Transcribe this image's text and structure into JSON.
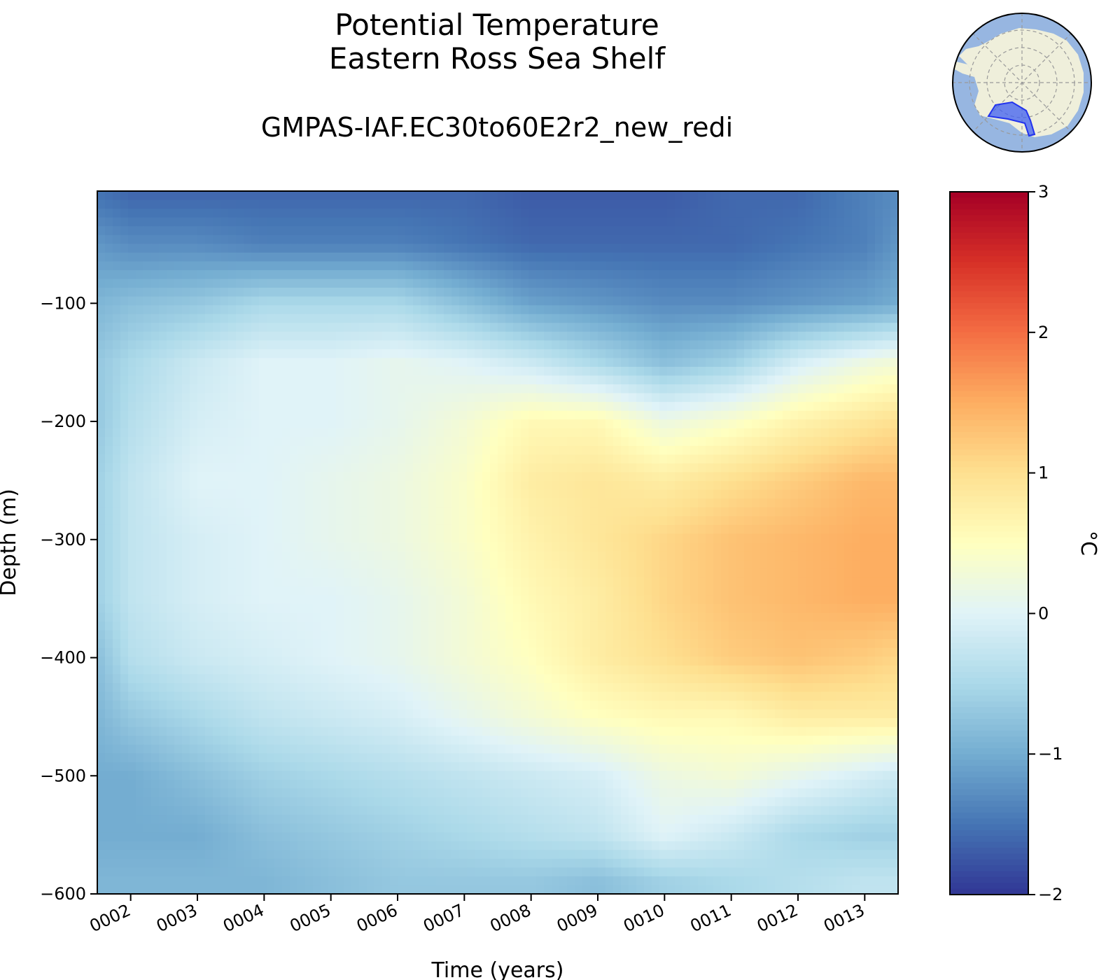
{
  "chart_data": {
    "type": "heatmap",
    "title": "Potential Temperature",
    "title_line2": "Eastern Ross Sea Shelf",
    "subtitle": "GMPAS-IAF.EC30to60E2r2_new_redi",
    "xlabel": "Time (years)",
    "ylabel": "Depth (m)",
    "x_tick_labels": [
      "0002",
      "0003",
      "0004",
      "0005",
      "0006",
      "0007",
      "0008",
      "0009",
      "0010",
      "0011",
      "0012",
      "0013"
    ],
    "x_range": [
      1.5,
      13.5
    ],
    "y_ticks": [
      -100,
      -200,
      -300,
      -400,
      -500,
      -600
    ],
    "y_tick_labels": [
      "−100",
      "−200",
      "−300",
      "−400",
      "−500",
      "−600"
    ],
    "y_range": [
      -600,
      -5
    ],
    "colorbar": {
      "label": "°C",
      "range": [
        -2,
        3
      ],
      "ticks": [
        3,
        2,
        1,
        0,
        -1,
        -2
      ],
      "tick_labels": [
        "3",
        "2",
        "1",
        "0",
        "−1",
        "−2"
      ],
      "colormap": "RdYlBu_r"
    },
    "inset_map": "antarctica-polar-map-eastern-ross-sea-region",
    "grid": false,
    "depth_levels": [
      -10,
      -50,
      -100,
      -150,
      -200,
      -250,
      -300,
      -350,
      -400,
      -450,
      -500,
      -550,
      -590
    ],
    "years": [
      1.5,
      2,
      3,
      4,
      5,
      6,
      7,
      8,
      9,
      10,
      11,
      12,
      13,
      13.5
    ],
    "values": [
      [
        -1.5,
        -1.6,
        -1.6,
        -1.6,
        -1.6,
        -1.6,
        -1.6,
        -1.7,
        -1.7,
        -1.7,
        -1.6,
        -1.6,
        -1.4,
        -1.3
      ],
      [
        -1.2,
        -1.3,
        -1.3,
        -1.4,
        -1.4,
        -1.4,
        -1.5,
        -1.6,
        -1.6,
        -1.6,
        -1.6,
        -1.5,
        -1.4,
        -1.2
      ],
      [
        -0.9,
        -0.8,
        -0.7,
        -0.5,
        -0.5,
        -0.5,
        -0.8,
        -1.1,
        -1.2,
        -1.3,
        -1.3,
        -1.2,
        -1.1,
        -1.0
      ],
      [
        -0.7,
        -0.5,
        -0.2,
        0.0,
        0.0,
        0.1,
        0.0,
        -0.2,
        -0.5,
        -0.8,
        -0.6,
        -0.1,
        0.2,
        0.3
      ],
      [
        -0.7,
        -0.4,
        -0.1,
        0.0,
        0.0,
        0.1,
        0.3,
        0.6,
        0.6,
        0.2,
        0.4,
        0.7,
        0.9,
        1.0
      ],
      [
        -0.6,
        -0.3,
        0.0,
        0.0,
        0.1,
        0.2,
        0.4,
        0.8,
        0.9,
        0.8,
        1.0,
        1.2,
        1.4,
        1.4
      ],
      [
        -0.6,
        -0.3,
        -0.1,
        0.0,
        0.1,
        0.2,
        0.4,
        0.7,
        0.9,
        1.1,
        1.3,
        1.4,
        1.5,
        1.5
      ],
      [
        -0.6,
        -0.3,
        -0.1,
        0.0,
        0.0,
        0.1,
        0.3,
        0.6,
        0.8,
        1.1,
        1.3,
        1.4,
        1.5,
        1.5
      ],
      [
        -0.8,
        -0.4,
        -0.2,
        -0.1,
        0.0,
        0.1,
        0.3,
        0.5,
        0.8,
        1.0,
        1.2,
        1.3,
        1.2,
        1.1
      ],
      [
        -0.9,
        -0.7,
        -0.5,
        -0.3,
        -0.2,
        -0.1,
        0.1,
        0.3,
        0.5,
        0.6,
        0.6,
        0.8,
        0.8,
        0.8
      ],
      [
        -1.0,
        -1.0,
        -0.8,
        -0.6,
        -0.5,
        -0.4,
        -0.3,
        -0.2,
        -0.1,
        0.2,
        0.3,
        0.1,
        -0.1,
        -0.2
      ],
      [
        -1.0,
        -1.0,
        -1.0,
        -0.8,
        -0.7,
        -0.6,
        -0.5,
        -0.4,
        -0.3,
        0.0,
        -0.2,
        -0.5,
        -0.6,
        -0.6
      ],
      [
        -0.9,
        -0.9,
        -0.9,
        -0.9,
        -0.8,
        -0.7,
        -0.7,
        -0.7,
        -0.8,
        -0.6,
        -0.5,
        -0.4,
        -0.3,
        -0.3
      ]
    ]
  }
}
